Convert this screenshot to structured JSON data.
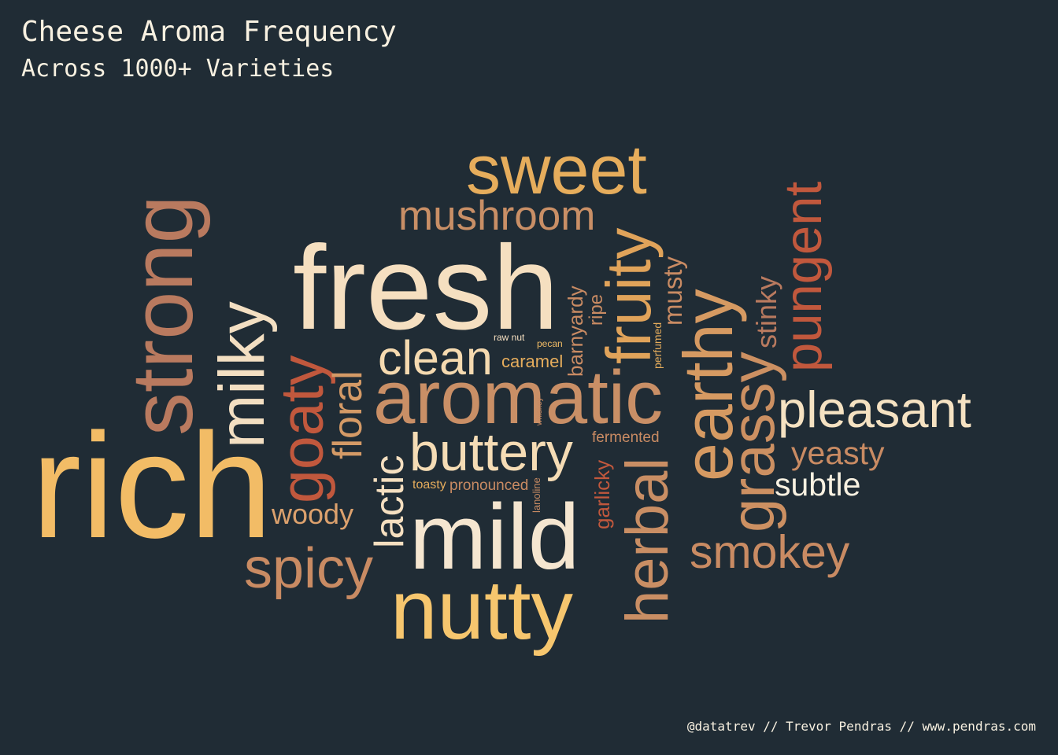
{
  "title": "Cheese Aroma Frequency",
  "subtitle": "Across 1000+ Varieties",
  "credit": "@datatrev // Trevor Pendras // www.pendras.com",
  "colors": {
    "background": "#202c35",
    "text": "#f8f1e1",
    "palette": [
      "#f2bc66",
      "#b97a5f",
      "#c98f66",
      "#f5dfc0",
      "#c1583d",
      "#e6a55a",
      "#dca16d"
    ]
  },
  "chart_data": {
    "type": "wordcloud",
    "words": [
      {
        "text": "rich",
        "value": 100,
        "rotation": 0,
        "color": "#f2bc66"
      },
      {
        "text": "fresh",
        "value": 97,
        "rotation": 0,
        "color": "#f5dfc0"
      },
      {
        "text": "aromatic",
        "value": 75,
        "rotation": 0,
        "color": "#c98f66"
      },
      {
        "text": "mild",
        "value": 78,
        "rotation": 0,
        "color": "#f5e6d0"
      },
      {
        "text": "nutty",
        "value": 76,
        "rotation": 0,
        "color": "#f6c66e"
      },
      {
        "text": "strong",
        "value": 78,
        "rotation": -90,
        "color": "#b97a5f"
      },
      {
        "text": "sweet",
        "value": 63,
        "rotation": 0,
        "color": "#e6ad5c"
      },
      {
        "text": "milky",
        "value": 63,
        "rotation": -90,
        "color": "#f3dfc2"
      },
      {
        "text": "earthy",
        "value": 63,
        "rotation": -90,
        "color": "#d69a62"
      },
      {
        "text": "fruity",
        "value": 59,
        "rotation": -90,
        "color": "#e0a35a"
      },
      {
        "text": "goaty",
        "value": 55,
        "rotation": -90,
        "color": "#c1583d"
      },
      {
        "text": "grassy",
        "value": 57,
        "rotation": -90,
        "color": "#cc9062"
      },
      {
        "text": "herbal",
        "value": 56,
        "rotation": -90,
        "color": "#c98e64"
      },
      {
        "text": "pungent",
        "value": 50,
        "rotation": -90,
        "color": "#c1583d"
      },
      {
        "text": "buttery",
        "value": 52,
        "rotation": 0,
        "color": "#f5dcb5"
      },
      {
        "text": "spicy",
        "value": 53,
        "rotation": 0,
        "color": "#c98b63"
      },
      {
        "text": "smokey",
        "value": 44,
        "rotation": 0,
        "color": "#c98b63"
      },
      {
        "text": "pleasant",
        "value": 48,
        "rotation": 0,
        "color": "#f5e2c2"
      },
      {
        "text": "clean",
        "value": 46,
        "rotation": 0,
        "color": "#f5dab0"
      },
      {
        "text": "mushroom",
        "value": 39,
        "rotation": 0,
        "color": "#c98f66"
      },
      {
        "text": "lactic",
        "value": 42,
        "rotation": -90,
        "color": "#f5dfc0"
      },
      {
        "text": "floral",
        "value": 39,
        "rotation": -90,
        "color": "#d49a66"
      },
      {
        "text": "subtle",
        "value": 32,
        "rotation": 0,
        "color": "#f8f1e1"
      },
      {
        "text": "yeasty",
        "value": 32,
        "rotation": 0,
        "color": "#c98b63"
      },
      {
        "text": "woody",
        "value": 27,
        "rotation": 0,
        "color": "#dca16d"
      },
      {
        "text": "stinky",
        "value": 26,
        "rotation": -90,
        "color": "#b97a5f"
      },
      {
        "text": "musty",
        "value": 24,
        "rotation": -90,
        "color": "#c98b63"
      },
      {
        "text": "barnyardy",
        "value": 19,
        "rotation": -90,
        "color": "#c98b63"
      },
      {
        "text": "garlicky",
        "value": 19,
        "rotation": -90,
        "color": "#c1583d"
      },
      {
        "text": "ripe",
        "value": 17,
        "rotation": -90,
        "color": "#c98b63"
      },
      {
        "text": "caramel",
        "value": 17,
        "rotation": 0,
        "color": "#e6ad5c"
      },
      {
        "text": "fermented",
        "value": 15,
        "rotation": 0,
        "color": "#c98b63"
      },
      {
        "text": "pronounced",
        "value": 15,
        "rotation": 0,
        "color": "#c98b63"
      },
      {
        "text": "toasty",
        "value": 13,
        "rotation": 0,
        "color": "#e6ad5c"
      },
      {
        "text": "perfumed",
        "value": 11,
        "rotation": -90,
        "color": "#e6ad5c"
      },
      {
        "text": "lanoline",
        "value": 10,
        "rotation": -90,
        "color": "#c98b63"
      },
      {
        "text": "raw nut",
        "value": 9,
        "rotation": 0,
        "color": "#f5dfc0"
      },
      {
        "text": "pecan",
        "value": 9,
        "rotation": 0,
        "color": "#f2bc66"
      },
      {
        "text": "whiskey",
        "value": 8,
        "rotation": -90,
        "color": "#c98b63"
      }
    ]
  }
}
